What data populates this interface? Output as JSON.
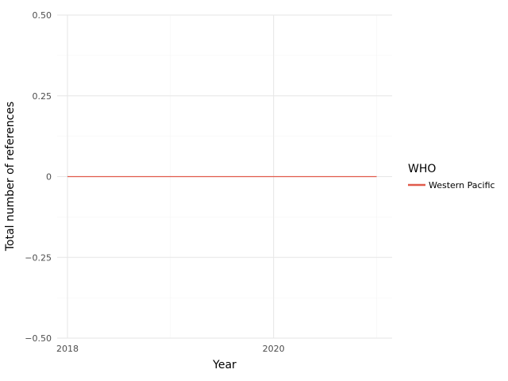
{
  "chart_data": {
    "type": "line",
    "xlabel": "Year",
    "ylabel": "Total number of references",
    "xlim": [
      2017.9,
      2021.15
    ],
    "ylim": [
      -0.5,
      0.5
    ],
    "x_major_ticks": [
      2018,
      2020
    ],
    "x_tick_labels": [
      "2018",
      "2020"
    ],
    "x_minor_ticks": [
      2019,
      2021
    ],
    "y_major_ticks": [
      -0.5,
      -0.25,
      0,
      0.25,
      0.5
    ],
    "y_tick_labels": [
      "−0.50",
      "−0.25",
      "0",
      "0.25",
      "0.50"
    ],
    "y_minor_ticks": [
      -0.375,
      -0.125,
      0.125,
      0.375
    ],
    "grid": true,
    "legend": {
      "title": "WHO",
      "placement": "right"
    },
    "series": [
      {
        "name": "Western Pacific",
        "color": "#e05a4b",
        "x": [
          2018,
          2019,
          2020,
          2021
        ],
        "y": [
          0,
          0,
          0,
          0
        ]
      }
    ]
  }
}
